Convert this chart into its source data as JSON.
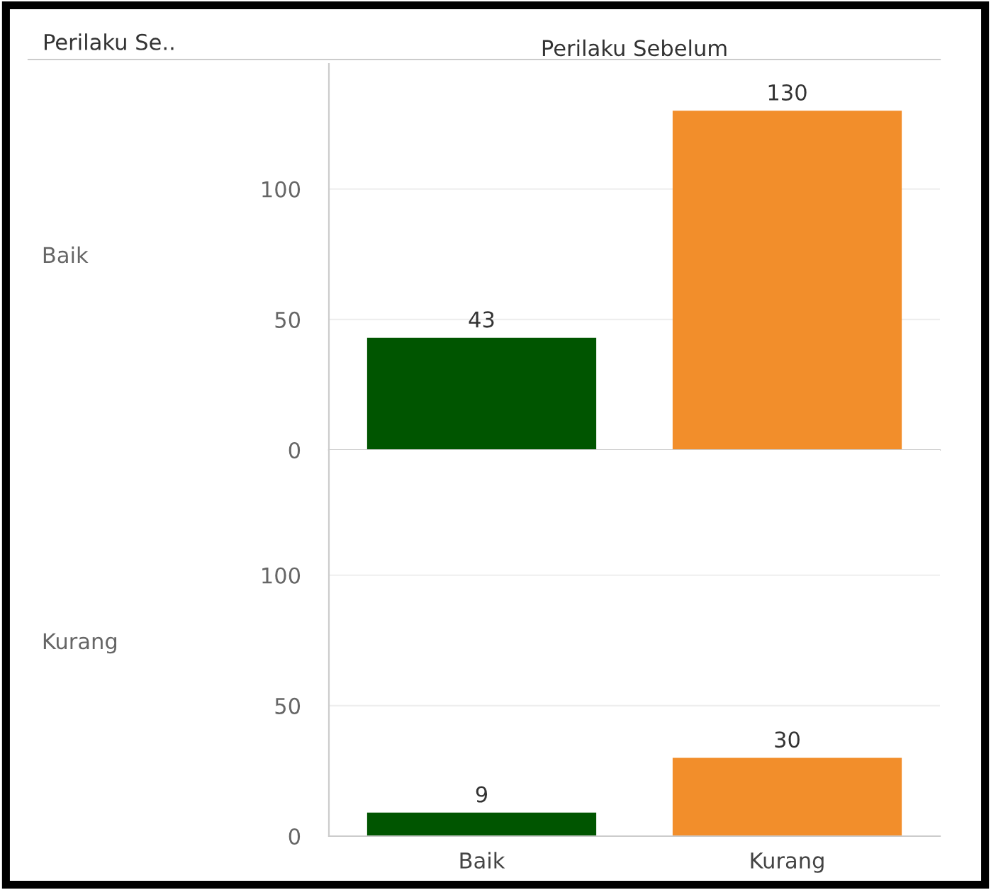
{
  "chart_data": [
    {
      "type": "bar",
      "title": "Perilaku Sebelum",
      "ylabel": "Baik",
      "annotations": [
        "Perilaku Se.."
      ],
      "categories": [
        null,
        null
      ],
      "values": [
        43,
        130
      ],
      "colors": [
        "#005500",
        "#f28e2b"
      ],
      "ylim": [
        0,
        148
      ],
      "yticks": [
        0,
        50,
        100
      ],
      "grid": "y",
      "data_labels": true,
      "tick_labels": "y"
    },
    {
      "type": "bar",
      "ylabel": "Kurang",
      "categories": [
        "Baik",
        "Kurang"
      ],
      "values": [
        9,
        30
      ],
      "colors": [
        "#005500",
        "#f28e2b"
      ],
      "ylim": [
        0,
        148
      ],
      "yticks": [
        0,
        50,
        100
      ],
      "grid": "y",
      "data_labels": true
    }
  ]
}
